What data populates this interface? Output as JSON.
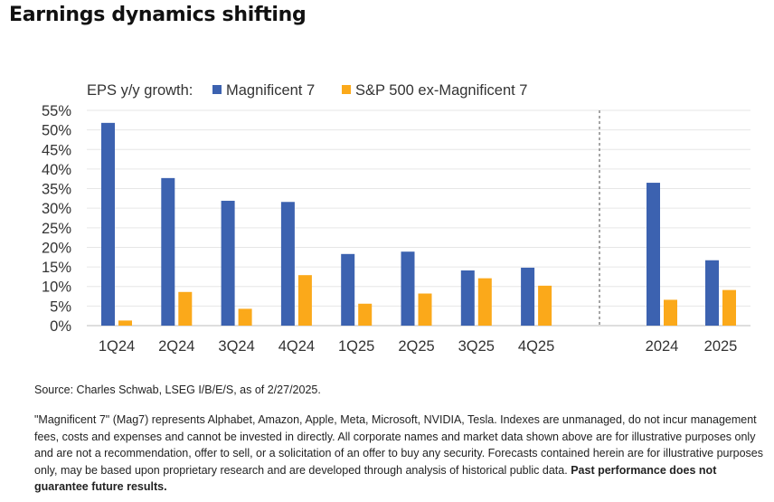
{
  "page": {
    "title": "Earnings dynamics shifting",
    "source": "Source: Charles Schwab, LSEG I/B/E/S, as of 2/27/2025.",
    "disclaimer": "\"Magnificent 7\" (Mag7) represents Alphabet, Amazon, Apple, Meta, Microsoft, NVIDIA, Tesla. Indexes are unmanaged, do not incur management fees, costs and expenses and cannot be invested in directly. All corporate names and market data shown above are for illustrative purposes only and are not a recommendation, offer to sell, or a solicitation of an offer to buy any security. Forecasts contained herein are for illustrative purposes only, may be based upon proprietary research and are developed through analysis of historical public data.",
    "disclaimer_bold": "Past performance does not guarantee future results."
  },
  "chart_data": {
    "type": "bar",
    "legend_title": "EPS y/y growth:",
    "legend_position": "top-left",
    "categories": [
      "1Q24",
      "2Q24",
      "3Q24",
      "4Q24",
      "1Q25",
      "2Q25",
      "3Q25",
      "4Q25",
      "2024",
      "2025"
    ],
    "series": [
      {
        "name": "Magnificent 7",
        "color": "#3c62b0",
        "values": [
          51.8,
          37.7,
          31.9,
          31.6,
          18.3,
          18.9,
          14.1,
          14.8,
          36.5,
          16.7
        ]
      },
      {
        "name": "S&P 500 ex-Magnificent 7",
        "color": "#fba91a",
        "values": [
          1.3,
          8.6,
          4.3,
          12.9,
          5.6,
          8.2,
          12.1,
          10.2,
          6.6,
          9.1
        ]
      }
    ],
    "ylim": [
      0,
      55
    ],
    "yticks": [
      0,
      5,
      10,
      15,
      20,
      25,
      30,
      35,
      40,
      45,
      50,
      55
    ],
    "ytick_suffix": "%",
    "grid": true,
    "separator_after_index": 7
  }
}
